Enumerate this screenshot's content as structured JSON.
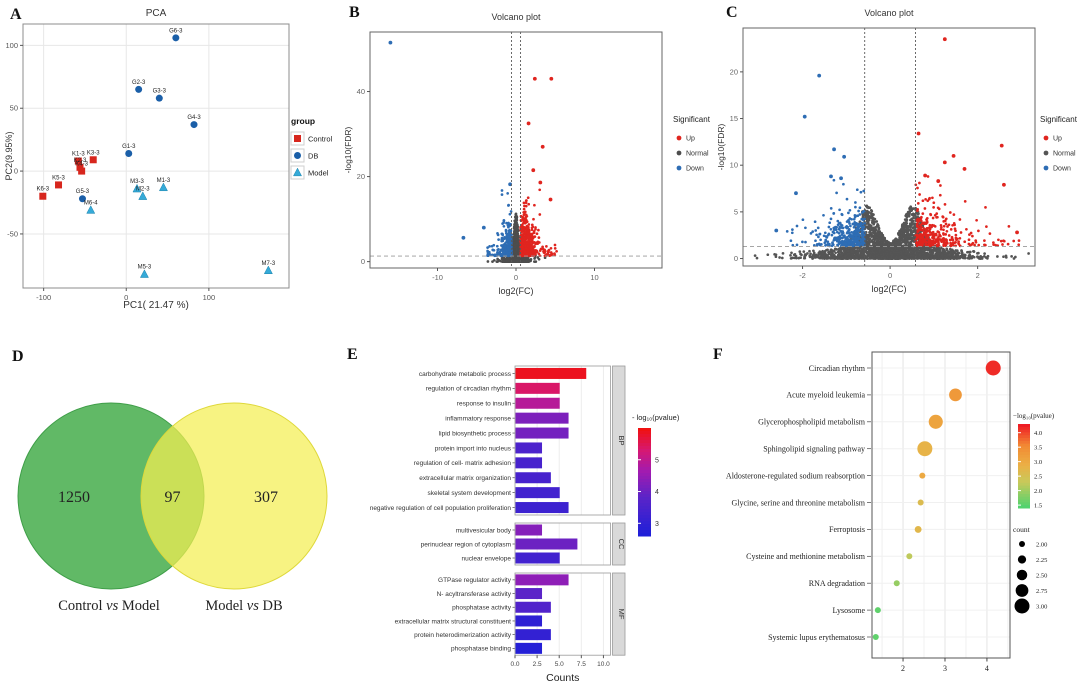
{
  "figure_title": "Multi-panel transcriptomics figure",
  "chart_data": [
    {
      "panel_letter": "A",
      "type": "scatter",
      "title": "PCA",
      "xlabel": "PC1( 21.47 %)",
      "ylabel": "PC2(9.95%)",
      "xlim": [
        -125,
        197
      ],
      "ylim": [
        -93,
        117
      ],
      "xticks": [
        -100,
        0,
        100
      ],
      "yticks": [
        -50,
        0,
        50,
        100
      ],
      "legend_title": "group",
      "series": [
        {
          "name": "Control",
          "marker": "square",
          "color": "#d7261d",
          "points": [
            {
              "label": "K1-3",
              "x": -58,
              "y": 8
            },
            {
              "label": "K3-3",
              "x": -40,
              "y": 9
            },
            {
              "label": "K2-3",
              "x": -56,
              "y": 3
            },
            {
              "label": "K4-3",
              "x": -54,
              "y": 0
            },
            {
              "label": "K5-3",
              "x": -82,
              "y": -11
            },
            {
              "label": "K6-3",
              "x": -101,
              "y": -20
            }
          ]
        },
        {
          "name": "DB",
          "marker": "circle",
          "color": "#1b5fa8",
          "points": [
            {
              "label": "G6-3",
              "x": 60,
              "y": 106
            },
            {
              "label": "G2-3",
              "x": 15,
              "y": 65
            },
            {
              "label": "G3-3",
              "x": 40,
              "y": 58
            },
            {
              "label": "G4-3",
              "x": 82,
              "y": 37
            },
            {
              "label": "G1-3",
              "x": 3,
              "y": 14
            },
            {
              "label": "G5-3",
              "x": -53,
              "y": -22
            }
          ]
        },
        {
          "name": "Model",
          "marker": "triangle",
          "color": "#35aad8",
          "points": [
            {
              "label": "M3-3",
              "x": 13,
              "y": -14
            },
            {
              "label": "M2-3",
              "x": 20,
              "y": -20
            },
            {
              "label": "M1-3",
              "x": 45,
              "y": -13
            },
            {
              "label": "M6-4",
              "x": -43,
              "y": -31
            },
            {
              "label": "M5-3",
              "x": 22,
              "y": -82
            },
            {
              "label": "M7-3",
              "x": 172,
              "y": -79
            }
          ]
        }
      ]
    },
    {
      "panel_letter": "B",
      "type": "volcano",
      "title": "Volcano plot",
      "xlabel": "log2(FC)",
      "ylabel": "-log10(FDR)",
      "xlim": [
        -18.6,
        18.6
      ],
      "ylim": [
        -1.5,
        54
      ],
      "xticks": [
        -10,
        0,
        10
      ],
      "yticks": [
        0,
        20,
        40
      ],
      "vlines": [
        -0.58,
        0.58
      ],
      "hline": 1.3,
      "legend_title": "Significant",
      "legend": [
        {
          "name": "Up",
          "color": "#e0251f"
        },
        {
          "name": "Normal",
          "color": "#4d4d4d"
        },
        {
          "name": "Down",
          "color": "#2e6db4"
        }
      ],
      "outliers": [
        {
          "x": -16.0,
          "y": 51.5,
          "class": "Down"
        },
        {
          "x": 2.4,
          "y": 43.0,
          "class": "Up"
        },
        {
          "x": 4.5,
          "y": 43.0,
          "class": "Up"
        },
        {
          "x": 1.6,
          "y": 32.5,
          "class": "Up"
        },
        {
          "x": 3.4,
          "y": 27.0,
          "class": "Up"
        },
        {
          "x": -6.7,
          "y": 5.6,
          "class": "Down"
        },
        {
          "x": -4.1,
          "y": 8.0,
          "class": "Down"
        },
        {
          "x": -0.75,
          "y": 18.2,
          "class": "Down"
        },
        {
          "x": 2.2,
          "y": 21.5,
          "class": "Up"
        },
        {
          "x": 3.1,
          "y": 18.6,
          "class": "Up"
        },
        {
          "x": 4.4,
          "y": 14.6,
          "class": "Up"
        }
      ],
      "cloud": {
        "seed": 7,
        "shape": "spike",
        "normal_n": 1500,
        "up_n": 480,
        "down_n": 300,
        "x0": 0.58,
        "up_sx": 0.85,
        "up_sy": 4.0,
        "up_ymax": 19,
        "up_xspread": 4.6,
        "down_sx": 0.7,
        "down_sy": 3.6,
        "down_ymax": 17,
        "down_xspread": 3.2
      }
    },
    {
      "panel_letter": "C",
      "type": "volcano",
      "title": "Volcano plot",
      "xlabel": "log2(FC)",
      "ylabel": "-log10(FDR)",
      "xlim": [
        -3.36,
        3.31
      ],
      "ylim": [
        -0.8,
        24.7
      ],
      "xticks": [
        -2,
        0,
        2
      ],
      "yticks": [
        0,
        5,
        10,
        15,
        20
      ],
      "vlines": [
        -0.58,
        0.58
      ],
      "hline": 1.3,
      "legend_title": "Significant",
      "legend": [
        {
          "name": "Up",
          "color": "#e0251f"
        },
        {
          "name": "Normal",
          "color": "#555555"
        },
        {
          "name": "Down",
          "color": "#2e6db4"
        }
      ],
      "outliers": [
        {
          "x": 1.25,
          "y": 23.5,
          "class": "Up"
        },
        {
          "x": -1.62,
          "y": 19.6,
          "class": "Down"
        },
        {
          "x": -1.95,
          "y": 15.2,
          "class": "Down"
        },
        {
          "x": 0.65,
          "y": 13.4,
          "class": "Up"
        },
        {
          "x": 2.55,
          "y": 12.1,
          "class": "Up"
        },
        {
          "x": -1.28,
          "y": 11.7,
          "class": "Down"
        },
        {
          "x": -1.05,
          "y": 10.9,
          "class": "Down"
        },
        {
          "x": 1.45,
          "y": 11.0,
          "class": "Up"
        },
        {
          "x": 1.25,
          "y": 10.3,
          "class": "Up"
        },
        {
          "x": 1.7,
          "y": 9.6,
          "class": "Up"
        },
        {
          "x": 2.6,
          "y": 7.9,
          "class": "Up"
        },
        {
          "x": -2.15,
          "y": 7.0,
          "class": "Down"
        },
        {
          "x": -1.35,
          "y": 8.8,
          "class": "Down"
        },
        {
          "x": -1.12,
          "y": 8.6,
          "class": "Down"
        },
        {
          "x": 0.8,
          "y": 8.9,
          "class": "Up"
        },
        {
          "x": 1.1,
          "y": 8.3,
          "class": "Up"
        },
        {
          "x": -2.6,
          "y": 3.0,
          "class": "Down"
        },
        {
          "x": 2.9,
          "y": 2.8,
          "class": "Up"
        }
      ],
      "cloud": {
        "seed": 13,
        "shape": "valley",
        "normal_n": 2600,
        "up_n": 330,
        "down_n": 330,
        "x0": 0.58,
        "up_sx": 0.5,
        "up_sy": 1.9,
        "up_ymax": 9,
        "up_xspread": 2.4,
        "down_sx": 0.5,
        "down_sy": 1.8,
        "down_ymax": 9,
        "down_xspread": 1.8
      }
    },
    {
      "panel_letter": "D",
      "type": "venn",
      "sets": [
        {
          "value": "1250",
          "label": [
            "Control",
            "vs",
            "Model"
          ],
          "color": "#58b55e",
          "stroke": "#3f9e48"
        },
        {
          "value": "307",
          "label": [
            "Model",
            "vs",
            "DB"
          ],
          "color": "#f4ef52",
          "stroke": "#ded83a"
        }
      ],
      "overlap_value": "97"
    },
    {
      "panel_letter": "E",
      "type": "barh_facet",
      "xlabel": "Counts",
      "xticks": [
        0,
        2.5,
        5,
        7.5,
        10
      ],
      "xtick_labels": [
        "0.0",
        "2.5",
        "5.0",
        "7.5",
        "10.0"
      ],
      "xlim": [
        0,
        10.8
      ],
      "colorbar": {
        "title": "- log₁₀(pvalue)",
        "ticks": [
          5,
          4,
          3
        ],
        "min": 2.6,
        "max": 6.0,
        "stops": [
          [
            0,
            "#1f1fd8"
          ],
          [
            0.35,
            "#5a24c8"
          ],
          [
            0.6,
            "#a21bb0"
          ],
          [
            0.8,
            "#d61872"
          ],
          [
            1,
            "#f01111"
          ]
        ]
      },
      "facets": [
        {
          "name": "BP",
          "rows": [
            {
              "term": "carbohydrate metabolic process",
              "count": 8,
              "logp": 5.9
            },
            {
              "term": "regulation of circadian rhythm",
              "count": 5,
              "logp": 5.4
            },
            {
              "term": "response to insulin",
              "count": 5,
              "logp": 4.9
            },
            {
              "term": "inflammatory response",
              "count": 6,
              "logp": 4.2
            },
            {
              "term": "lipid biosynthetic process",
              "count": 6,
              "logp": 4.1
            },
            {
              "term": "protein import into nucleus",
              "count": 3,
              "logp": 3.5
            },
            {
              "term": "regulation of cell- matrix adhesion",
              "count": 3,
              "logp": 3.4
            },
            {
              "term": "extracellular matrix organization",
              "count": 4,
              "logp": 3.4
            },
            {
              "term": "skeletal system development",
              "count": 5,
              "logp": 3.3
            },
            {
              "term": "negative regulation of cell population proliferation",
              "count": 6,
              "logp": 3.2
            }
          ]
        },
        {
          "name": "CC",
          "rows": [
            {
              "term": "multivesicular body",
              "count": 3,
              "logp": 4.3
            },
            {
              "term": "perinuclear region of cytoplasm",
              "count": 7,
              "logp": 4.0
            },
            {
              "term": "nuclear envelope",
              "count": 5,
              "logp": 3.3
            }
          ]
        },
        {
          "name": "MF",
          "rows": [
            {
              "term": "GTPase regulator activity",
              "count": 6,
              "logp": 4.4
            },
            {
              "term": "N- acyltransferase activity",
              "count": 3,
              "logp": 3.8
            },
            {
              "term": "phosphatase activity",
              "count": 4,
              "logp": 3.6
            },
            {
              "term": "extracellular matrix structural constituent",
              "count": 3,
              "logp": 2.9
            },
            {
              "term": "protein heterodimerization activity",
              "count": 4,
              "logp": 3.0
            },
            {
              "term": "phosphatase binding",
              "count": 3,
              "logp": 2.7
            }
          ]
        }
      ]
    },
    {
      "panel_letter": "F",
      "type": "dotplot",
      "xticks": [
        2,
        3,
        4
      ],
      "xlim": [
        1.26,
        4.55
      ],
      "color_legend": {
        "title": "−log₁₀(pvalue)",
        "ticks": [
          "4.0",
          "3.5",
          "3.0",
          "2.5",
          "2.0",
          "1.5"
        ],
        "min": 1.4,
        "max": 4.3,
        "stops": [
          [
            0,
            "#52d26e"
          ],
          [
            0.3,
            "#c8c95a"
          ],
          [
            0.5,
            "#eab146"
          ],
          [
            0.75,
            "#f28a33"
          ],
          [
            1,
            "#ee1c25"
          ]
        ]
      },
      "size_legend": {
        "title": "count",
        "ticks": [
          "2.00",
          "2.25",
          "2.50",
          "2.75",
          "3.00"
        ],
        "values": [
          2.0,
          2.25,
          2.5,
          2.75,
          3.0
        ]
      },
      "rows": [
        {
          "term": "Circadian rhythm",
          "x": 4.15,
          "logp": 4.2,
          "count": 3.0
        },
        {
          "term": "Acute myeloid leukemia",
          "x": 3.25,
          "logp": 3.3,
          "count": 2.75
        },
        {
          "term": "Glycerophospholipid metabolism",
          "x": 2.78,
          "logp": 3.1,
          "count": 2.9
        },
        {
          "term": "Sphingolipid signaling pathway",
          "x": 2.52,
          "logp": 2.8,
          "count": 3.0
        },
        {
          "term": "Aldosterone-regulated sodium reabsorption",
          "x": 2.46,
          "logp": 3.0,
          "count": 2.0
        },
        {
          "term": "Glycine, serine and threonine metabolism",
          "x": 2.42,
          "logp": 2.6,
          "count": 2.0
        },
        {
          "term": "Ferroptosis",
          "x": 2.36,
          "logp": 2.7,
          "count": 2.1
        },
        {
          "term": "Cysteine and methionine metabolism",
          "x": 2.15,
          "logp": 2.2,
          "count": 2.0
        },
        {
          "term": "RNA degradation",
          "x": 1.85,
          "logp": 1.9,
          "count": 2.0
        },
        {
          "term": "Lysosome",
          "x": 1.4,
          "logp": 1.5,
          "count": 2.0
        },
        {
          "term": "Systemic lupus erythematosus",
          "x": 1.35,
          "logp": 1.5,
          "count": 2.0
        }
      ]
    }
  ]
}
